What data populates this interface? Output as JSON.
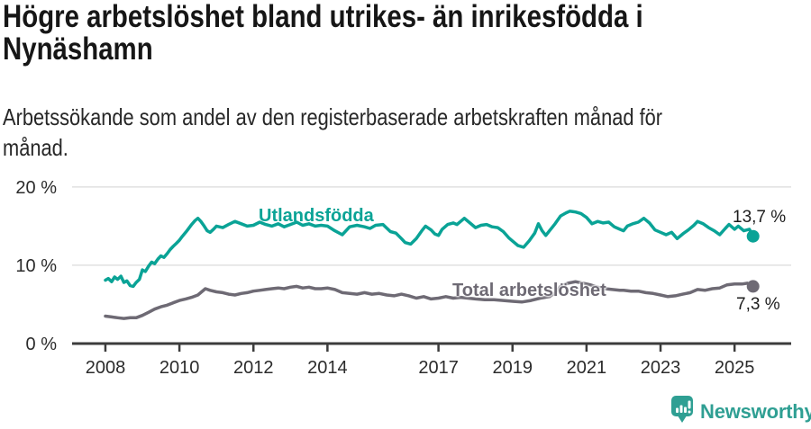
{
  "header": {
    "title_lines": [
      "Högre arbetslöshet bland utrikes- än inrikesfödda i",
      "Nynäshamn"
    ],
    "subtitle_lines": [
      "Arbetssökande som andel av den registerbaserade arbetskraften månad för",
      "månad."
    ]
  },
  "chart_data": {
    "type": "line",
    "title": "Högre arbetslöshet bland utrikes- än inrikesfödda i Nynäshamn",
    "subtitle": "Arbetssökande som andel av den registerbaserade arbetskraften månad för månad.",
    "grid": "horizontal",
    "grid_color": "#e0e0e0",
    "axis_color": "#3c3c3c",
    "tick_label_color": "#2b2b2b",
    "x_axis": {
      "range": [
        2007.1,
        2026.53
      ],
      "ticks": [
        2008,
        2010,
        2012,
        2014,
        2017,
        2019,
        2021,
        2023,
        2025
      ],
      "tick_labels": [
        "2008",
        "2010",
        "2012",
        "2014",
        "2017",
        "2019",
        "2021",
        "2023",
        "2025"
      ]
    },
    "y_axis": {
      "range": [
        0,
        20.9
      ],
      "ticks": [
        0,
        10,
        20
      ],
      "tick_labels": [
        "0 %",
        "10 %",
        "20 %"
      ],
      "unit": "%"
    },
    "series": [
      {
        "name": "Utlandsfödda",
        "color": "#0aa396",
        "end_value": 13.7,
        "end_label": "13,7 %",
        "points": [
          [
            2008,
            8.1
          ],
          [
            2008.08,
            8.3
          ],
          [
            2008.17,
            7.9
          ],
          [
            2008.25,
            8.5
          ],
          [
            2008.33,
            8.2
          ],
          [
            2008.42,
            8.6
          ],
          [
            2008.5,
            7.8
          ],
          [
            2008.58,
            8
          ],
          [
            2008.67,
            7.4
          ],
          [
            2008.75,
            7.3
          ],
          [
            2008.83,
            7.8
          ],
          [
            2008.92,
            8.2
          ],
          [
            2009,
            9.4
          ],
          [
            2009.08,
            9.2
          ],
          [
            2009.17,
            9.9
          ],
          [
            2009.25,
            10.4
          ],
          [
            2009.33,
            10.2
          ],
          [
            2009.42,
            10.8
          ],
          [
            2009.5,
            11.2
          ],
          [
            2009.58,
            11
          ],
          [
            2009.67,
            11.5
          ],
          [
            2009.75,
            12
          ],
          [
            2009.83,
            12.4
          ],
          [
            2009.92,
            12.8
          ],
          [
            2010,
            13.2
          ],
          [
            2010.08,
            13.7
          ],
          [
            2010.17,
            14.2
          ],
          [
            2010.25,
            14.7
          ],
          [
            2010.33,
            15.2
          ],
          [
            2010.42,
            15.7
          ],
          [
            2010.5,
            16
          ],
          [
            2010.58,
            15.6
          ],
          [
            2010.67,
            15
          ],
          [
            2010.75,
            14.4
          ],
          [
            2010.83,
            14.2
          ],
          [
            2010.92,
            14.6
          ],
          [
            2011,
            15
          ],
          [
            2011.17,
            14.8
          ],
          [
            2011.33,
            15.2
          ],
          [
            2011.5,
            15.6
          ],
          [
            2011.67,
            15.3
          ],
          [
            2011.83,
            15
          ],
          [
            2012,
            15.1
          ],
          [
            2012.17,
            15.5
          ],
          [
            2012.33,
            15.2
          ],
          [
            2012.5,
            15
          ],
          [
            2012.67,
            15.3
          ],
          [
            2012.83,
            14.9
          ],
          [
            2013,
            15.2
          ],
          [
            2013.17,
            15.5
          ],
          [
            2013.33,
            15.1
          ],
          [
            2013.5,
            15.3
          ],
          [
            2013.67,
            15
          ],
          [
            2013.83,
            15.1
          ],
          [
            2014,
            15
          ],
          [
            2014.2,
            14.4
          ],
          [
            2014.4,
            13.9
          ],
          [
            2014.6,
            14.9
          ],
          [
            2014.8,
            15.1
          ],
          [
            2015,
            14.9
          ],
          [
            2015.15,
            14.7
          ],
          [
            2015.3,
            15.1
          ],
          [
            2015.5,
            15.2
          ],
          [
            2015.7,
            14.3
          ],
          [
            2015.85,
            14.1
          ],
          [
            2016,
            13.4
          ],
          [
            2016.1,
            12.9
          ],
          [
            2016.25,
            12.7
          ],
          [
            2016.4,
            13.4
          ],
          [
            2016.55,
            14.4
          ],
          [
            2016.65,
            15
          ],
          [
            2016.8,
            14.5
          ],
          [
            2016.9,
            14
          ],
          [
            2017,
            13.8
          ],
          [
            2017.1,
            14.6
          ],
          [
            2017.25,
            15.2
          ],
          [
            2017.4,
            15.4
          ],
          [
            2017.5,
            15.2
          ],
          [
            2017.6,
            15.6
          ],
          [
            2017.7,
            16
          ],
          [
            2017.85,
            15.4
          ],
          [
            2018,
            14.8
          ],
          [
            2018.15,
            15.1
          ],
          [
            2018.3,
            15.2
          ],
          [
            2018.45,
            14.9
          ],
          [
            2018.6,
            14.8
          ],
          [
            2018.75,
            14.3
          ],
          [
            2018.9,
            13.5
          ],
          [
            2019,
            13.1
          ],
          [
            2019.15,
            12.5
          ],
          [
            2019.3,
            12.3
          ],
          [
            2019.45,
            13.1
          ],
          [
            2019.6,
            14.1
          ],
          [
            2019.7,
            15.3
          ],
          [
            2019.8,
            14.4
          ],
          [
            2019.9,
            13.8
          ],
          [
            2020,
            14.4
          ],
          [
            2020.15,
            15.3
          ],
          [
            2020.3,
            16.3
          ],
          [
            2020.45,
            16.7
          ],
          [
            2020.55,
            16.9
          ],
          [
            2020.7,
            16.8
          ],
          [
            2020.85,
            16.6
          ],
          [
            2021,
            16.1
          ],
          [
            2021.15,
            15.3
          ],
          [
            2021.3,
            15.6
          ],
          [
            2021.45,
            15.4
          ],
          [
            2021.6,
            15.5
          ],
          [
            2021.75,
            14.9
          ],
          [
            2021.9,
            14.6
          ],
          [
            2022,
            14.4
          ],
          [
            2022.1,
            15
          ],
          [
            2022.25,
            15.3
          ],
          [
            2022.4,
            15.5
          ],
          [
            2022.55,
            16
          ],
          [
            2022.7,
            15.4
          ],
          [
            2022.85,
            14.5
          ],
          [
            2023,
            14.2
          ],
          [
            2023.15,
            13.9
          ],
          [
            2023.3,
            14.2
          ],
          [
            2023.45,
            13.4
          ],
          [
            2023.6,
            14
          ],
          [
            2023.75,
            14.5
          ],
          [
            2023.9,
            15.1
          ],
          [
            2024,
            15.6
          ],
          [
            2024.15,
            15.3
          ],
          [
            2024.3,
            14.8
          ],
          [
            2024.45,
            14.4
          ],
          [
            2024.6,
            13.9
          ],
          [
            2024.75,
            14.7
          ],
          [
            2024.85,
            15.2
          ],
          [
            2025,
            14.6
          ],
          [
            2025.1,
            15
          ],
          [
            2025.25,
            14.4
          ],
          [
            2025.4,
            14.6
          ],
          [
            2025.5,
            13.7
          ]
        ]
      },
      {
        "name": "Total arbetslöshet",
        "color": "#6e6a74",
        "end_value": 7.3,
        "end_label": "7,3 %",
        "points": [
          [
            2008,
            3.5
          ],
          [
            2008.17,
            3.4
          ],
          [
            2008.33,
            3.3
          ],
          [
            2008.5,
            3.2
          ],
          [
            2008.67,
            3.3
          ],
          [
            2008.83,
            3.3
          ],
          [
            2009,
            3.6
          ],
          [
            2009.17,
            4
          ],
          [
            2009.33,
            4.4
          ],
          [
            2009.5,
            4.7
          ],
          [
            2009.67,
            4.9
          ],
          [
            2009.83,
            5.2
          ],
          [
            2010,
            5.5
          ],
          [
            2010.17,
            5.7
          ],
          [
            2010.33,
            5.9
          ],
          [
            2010.5,
            6.2
          ],
          [
            2010.7,
            7
          ],
          [
            2010.83,
            6.8
          ],
          [
            2011,
            6.6
          ],
          [
            2011.17,
            6.5
          ],
          [
            2011.33,
            6.3
          ],
          [
            2011.5,
            6.2
          ],
          [
            2011.67,
            6.4
          ],
          [
            2011.83,
            6.5
          ],
          [
            2012,
            6.7
          ],
          [
            2012.17,
            6.8
          ],
          [
            2012.33,
            6.9
          ],
          [
            2012.5,
            7
          ],
          [
            2012.67,
            7.1
          ],
          [
            2012.83,
            7
          ],
          [
            2013,
            7.2
          ],
          [
            2013.17,
            7.3
          ],
          [
            2013.33,
            7.1
          ],
          [
            2013.5,
            7.2
          ],
          [
            2013.67,
            7
          ],
          [
            2013.83,
            7
          ],
          [
            2014,
            7.1
          ],
          [
            2014.2,
            6.9
          ],
          [
            2014.4,
            6.5
          ],
          [
            2014.6,
            6.4
          ],
          [
            2014.8,
            6.3
          ],
          [
            2015,
            6.5
          ],
          [
            2015.2,
            6.3
          ],
          [
            2015.4,
            6.4
          ],
          [
            2015.6,
            6.2
          ],
          [
            2015.8,
            6.1
          ],
          [
            2016,
            6.3
          ],
          [
            2016.2,
            6.1
          ],
          [
            2016.4,
            5.8
          ],
          [
            2016.6,
            6
          ],
          [
            2016.8,
            5.7
          ],
          [
            2017,
            5.8
          ],
          [
            2017.2,
            6
          ],
          [
            2017.4,
            5.8
          ],
          [
            2017.6,
            5.9
          ],
          [
            2017.8,
            5.8
          ],
          [
            2018,
            5.7
          ],
          [
            2018.25,
            5.6
          ],
          [
            2018.5,
            5.6
          ],
          [
            2018.75,
            5.5
          ],
          [
            2019,
            5.4
          ],
          [
            2019.25,
            5.3
          ],
          [
            2019.5,
            5.5
          ],
          [
            2019.75,
            5.8
          ],
          [
            2020,
            6
          ],
          [
            2020.15,
            6.5
          ],
          [
            2020.3,
            7.3
          ],
          [
            2020.5,
            7.7
          ],
          [
            2020.7,
            7.9
          ],
          [
            2020.9,
            7.7
          ],
          [
            2021.1,
            7.5
          ],
          [
            2021.3,
            7.2
          ],
          [
            2021.5,
            7
          ],
          [
            2021.7,
            6.9
          ],
          [
            2021.9,
            6.8
          ],
          [
            2022,
            6.8
          ],
          [
            2022.2,
            6.7
          ],
          [
            2022.4,
            6.7
          ],
          [
            2022.6,
            6.5
          ],
          [
            2022.8,
            6.4
          ],
          [
            2023,
            6.2
          ],
          [
            2023.2,
            6
          ],
          [
            2023.4,
            6.1
          ],
          [
            2023.6,
            6.3
          ],
          [
            2023.8,
            6.5
          ],
          [
            2024,
            6.9
          ],
          [
            2024.2,
            6.8
          ],
          [
            2024.4,
            7
          ],
          [
            2024.6,
            7.1
          ],
          [
            2024.8,
            7.5
          ],
          [
            2025,
            7.6
          ],
          [
            2025.2,
            7.6
          ],
          [
            2025.35,
            7.7
          ],
          [
            2025.5,
            7.3
          ]
        ]
      }
    ]
  },
  "footer": {
    "brand": "Newsworthy",
    "brand_color": "#2f9f93"
  }
}
